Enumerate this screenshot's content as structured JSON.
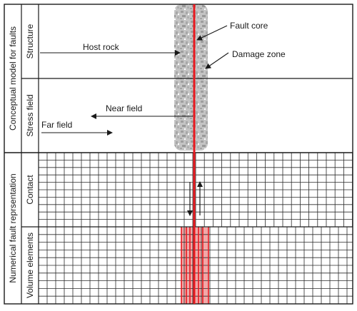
{
  "labels": {
    "group_conceptual": "Conceptual model for faults",
    "group_numerical": "Numerical fault reprsentation",
    "row_structure": "Structure",
    "row_stress": "Stress field",
    "row_contact": "Contact",
    "row_volume": "Volume elements",
    "fault_core": "Fault core",
    "damage_zone": "Damage zone",
    "host_rock": "Host rock",
    "near_field": "Near field",
    "far_field": "Far field"
  },
  "colors": {
    "fault_line": "#e8191f",
    "damage_zone": "#b8b8b8",
    "grid_line": "#2a2a2a",
    "element_fill": "#f2a7a7",
    "frame": "#1a1a1a"
  }
}
